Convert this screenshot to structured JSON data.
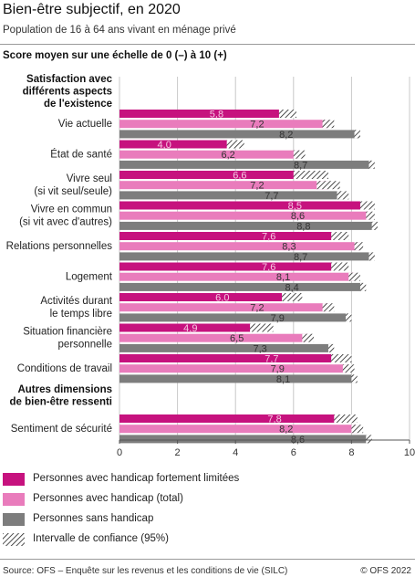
{
  "header": {
    "title": "Bien-être subjectif, en 2020",
    "subtitle": "Population de 16 à 64 ans vivant en ménage privé",
    "scale_note": "Score moyen sur une échelle de 0 (–) à 10 (+)"
  },
  "chart_data": {
    "type": "bar",
    "orientation": "horizontal",
    "xlim": [
      0,
      10
    ],
    "xticks": [
      "0",
      "2",
      "4",
      "6",
      "8",
      "10"
    ],
    "grid": true,
    "sections": [
      {
        "heading": [
          "Satisfaction avec",
          "différents aspects",
          "de l'existence"
        ],
        "categories": [
          {
            "label": [
              "Vie actuelle"
            ],
            "values": [
              5.8,
              7.2,
              8.2
            ],
            "ci": [
              [
                5.5,
                6.1
              ],
              [
                7.0,
                7.4
              ],
              [
                8.1,
                8.3
              ]
            ]
          },
          {
            "label": [
              "État de santé"
            ],
            "values": [
              4.0,
              6.2,
              8.7
            ],
            "ci": [
              [
                3.7,
                4.3
              ],
              [
                6.0,
                6.4
              ],
              [
                8.6,
                8.8
              ]
            ]
          },
          {
            "label": [
              "Vivre seul",
              "(si vit seul/seule)"
            ],
            "values": [
              6.6,
              7.2,
              7.7
            ],
            "ci": [
              [
                6.0,
                7.2
              ],
              [
                6.8,
                7.6
              ],
              [
                7.5,
                7.9
              ]
            ]
          },
          {
            "label": [
              "Vivre en commun",
              "(si vit avec d'autres)"
            ],
            "values": [
              8.5,
              8.6,
              8.8
            ],
            "ci": [
              [
                8.3,
                8.8
              ],
              [
                8.5,
                8.8
              ],
              [
                8.7,
                8.9
              ]
            ]
          },
          {
            "label": [
              "Relations personnelles"
            ],
            "values": [
              7.6,
              8.3,
              8.7
            ],
            "ci": [
              [
                7.3,
                7.9
              ],
              [
                8.1,
                8.4
              ],
              [
                8.6,
                8.8
              ]
            ]
          },
          {
            "label": [
              "Logement"
            ],
            "values": [
              7.6,
              8.1,
              8.4
            ],
            "ci": [
              [
                7.3,
                7.9
              ],
              [
                7.9,
                8.3
              ],
              [
                8.3,
                8.5
              ]
            ]
          },
          {
            "label": [
              "Activités durant",
              "le temps libre"
            ],
            "values": [
              6.0,
              7.2,
              7.9
            ],
            "ci": [
              [
                5.6,
                6.3
              ],
              [
                7.0,
                7.4
              ],
              [
                7.8,
                8.0
              ]
            ]
          },
          {
            "label": [
              "Situation financière",
              "personnelle"
            ],
            "values": [
              4.9,
              6.5,
              7.3
            ],
            "ci": [
              [
                4.5,
                5.3
              ],
              [
                6.3,
                6.7
              ],
              [
                7.2,
                7.4
              ]
            ]
          },
          {
            "label": [
              "Conditions de travail"
            ],
            "values": [
              7.7,
              7.9,
              8.1
            ],
            "ci": [
              [
                7.3,
                8.0
              ],
              [
                7.7,
                8.1
              ],
              [
                8.0,
                8.2
              ]
            ]
          }
        ]
      },
      {
        "heading": [
          "Autres dimensions",
          "de bien-être ressenti"
        ],
        "categories": [
          {
            "label": [
              "Sentiment de sécurité"
            ],
            "values": [
              7.8,
              8.2,
              8.6
            ],
            "ci": [
              [
                7.4,
                8.2
              ],
              [
                8.0,
                8.4
              ],
              [
                8.5,
                8.7
              ]
            ]
          }
        ]
      }
    ],
    "value_labels": [
      [
        "5,8",
        "7,2",
        "8,2"
      ],
      [
        "4,0",
        "6,2",
        "8,7"
      ],
      [
        "6,6",
        "7,2",
        "7,7"
      ],
      [
        "8,5",
        "8,6",
        "8,8"
      ],
      [
        "7,6",
        "8,3",
        "8,7"
      ],
      [
        "7,6",
        "8,1",
        "8,4"
      ],
      [
        "6,0",
        "7,2",
        "7,9"
      ],
      [
        "4,9",
        "6,5",
        "7,3"
      ],
      [
        "7,7",
        "7,9",
        "8,1"
      ],
      [
        "7,8",
        "8,2",
        "8,6"
      ]
    ],
    "series": [
      {
        "name": "Personnes avec handicap fortement limitées",
        "color": "#c6127e"
      },
      {
        "name": "Personnes avec handicap (total)",
        "color": "#e97cbc"
      },
      {
        "name": "Personnes sans handicap",
        "color": "#7d7d7d"
      }
    ],
    "ci_legend": "Intervalle de confiance (95%)"
  },
  "footer": {
    "source": "Source: OFS – Enquête sur les revenus et les conditions de vie (SILC)",
    "copyright": "© OFS 2022"
  }
}
